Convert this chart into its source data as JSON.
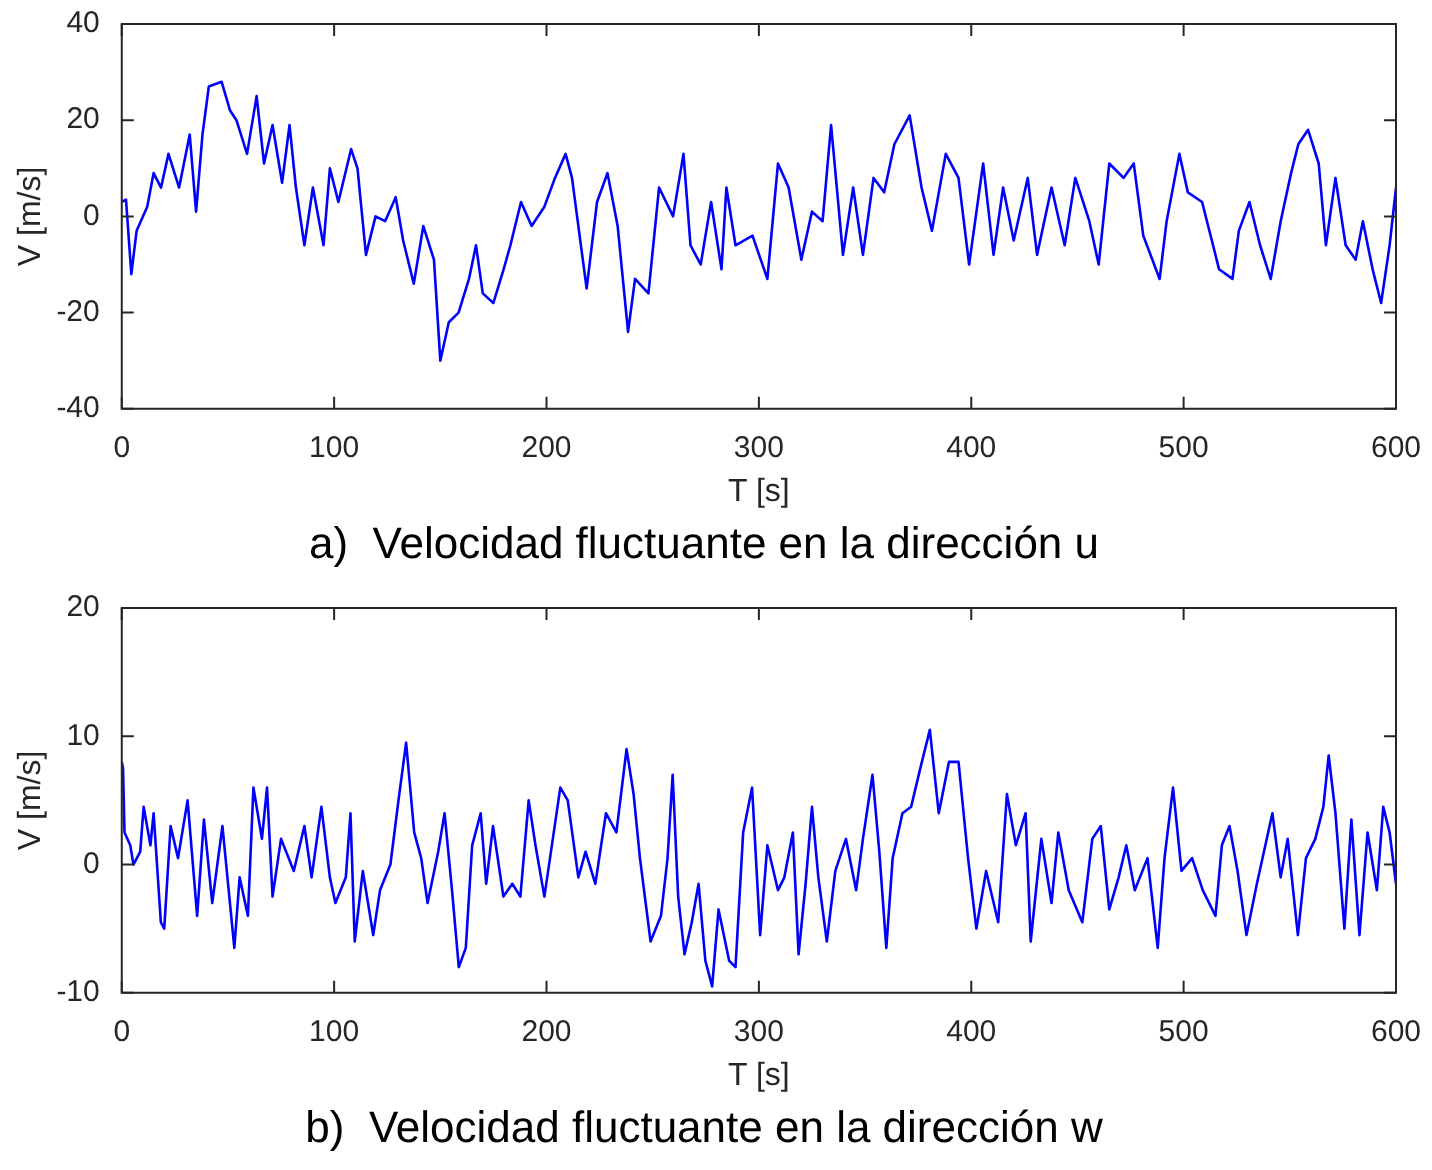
{
  "chart_data": [
    {
      "type": "line",
      "title": "a)  Velocidad fluctuante en la dirección u",
      "xlabel": "T [s]",
      "ylabel": "V [m/s]",
      "x": [
        0,
        2,
        4.5,
        7,
        12,
        15,
        18.5,
        22,
        27,
        32,
        35,
        38,
        41,
        47,
        51,
        54,
        59,
        63.5,
        67,
        71,
        75.5,
        79,
        82,
        86,
        90,
        95,
        98,
        102,
        108,
        111,
        115,
        119.5,
        124,
        129,
        132.5,
        137.5,
        142,
        147,
        150,
        154,
        158.6,
        163.5,
        166.8,
        170,
        175,
        179.8,
        183,
        188,
        193,
        199,
        204,
        209,
        212,
        218.9,
        223.8,
        228.7,
        233.5,
        238.4,
        241.7,
        248,
        253,
        259.6,
        264.5,
        267.8,
        272.6,
        277.5,
        282.4,
        284.7,
        289,
        297,
        304,
        309,
        314,
        320,
        325,
        330,
        334,
        339.6,
        344.4,
        349,
        354,
        359,
        363.8,
        371,
        376.6,
        381.5,
        388,
        394,
        399,
        405.6,
        410.5,
        415,
        420,
        426.6,
        431,
        437.8,
        444,
        449,
        455.6,
        460,
        465,
        471.7,
        476.5,
        481,
        488.7,
        492,
        498,
        502,
        508.7,
        516.7,
        523,
        526,
        531,
        536,
        541,
        545.7,
        550.6,
        554,
        558.6,
        563.6,
        567,
        571.5,
        576.3,
        581,
        584.4,
        589,
        593,
        597,
        600
      ],
      "series": [
        {
          "color": "#0000ff",
          "values": [
            3,
            3.5,
            -12,
            -3,
            2,
            9,
            6,
            13,
            6,
            17,
            1,
            17,
            27,
            28,
            22,
            20,
            13,
            25,
            11,
            19,
            7,
            19,
            6,
            -6,
            6,
            -6,
            10,
            3,
            14,
            10,
            -8,
            0,
            -1,
            4,
            -5,
            -14,
            -2,
            -9,
            -30,
            -22,
            -20,
            -13,
            -6,
            -16,
            -18,
            -11,
            -6,
            3,
            -2,
            2,
            8,
            13,
            8,
            -15,
            3,
            9,
            -2,
            -24,
            -13,
            -16,
            6,
            0,
            13,
            -6,
            -10,
            3,
            -11,
            6,
            -6,
            -4,
            -13,
            11,
            6,
            -9,
            1,
            -1,
            19,
            -8,
            6,
            -8,
            8,
            5,
            15,
            21,
            6,
            -3,
            13,
            8,
            -10,
            11,
            -8,
            6,
            -5,
            8,
            -8,
            6,
            -6,
            8,
            -1,
            -10,
            11,
            8,
            11,
            -4,
            -13,
            -1,
            13,
            5,
            3,
            -11,
            -13,
            -3,
            3,
            -6,
            -13,
            -1,
            9,
            15,
            18,
            11,
            -6,
            8,
            -6,
            -9,
            -1,
            -11,
            -18,
            -6,
            6
          ]
        }
      ],
      "xlim": [
        0,
        600
      ],
      "xticks": [
        0,
        100,
        200,
        300,
        400,
        500,
        600
      ],
      "ylim": [
        -40,
        40
      ],
      "yticks": [
        -40,
        -20,
        0,
        20,
        40
      ]
    },
    {
      "type": "line",
      "title": "b)  Velocidad fluctuante en la dirección w",
      "xlabel": "T [s]",
      "ylabel": "V [m/s]",
      "x": [
        0,
        0.6,
        1.3,
        4,
        5.5,
        8.7,
        10.3,
        13.5,
        15,
        18.4,
        20,
        23,
        26.5,
        31,
        35.5,
        38.7,
        42.6,
        47.4,
        53,
        55.5,
        59.4,
        62,
        66,
        68.4,
        71,
        75,
        81,
        86,
        89.4,
        94,
        98,
        100.6,
        105.5,
        107.7,
        109.7,
        113.5,
        118.4,
        121.6,
        126.5,
        130.3,
        133.9,
        137.7,
        141,
        144,
        149,
        152,
        155.5,
        158.7,
        162,
        165,
        169,
        171.6,
        174.8,
        179.7,
        183.9,
        187.7,
        191.6,
        194.8,
        199,
        206.5,
        210,
        215,
        218.4,
        223,
        228,
        232.9,
        237.7,
        241,
        244,
        249,
        253.9,
        257,
        259.4,
        262,
        265,
        268.4,
        271.6,
        274.8,
        278,
        281,
        286,
        289,
        292.6,
        296.8,
        300.6,
        304,
        309,
        312,
        316,
        318.7,
        322,
        325,
        328,
        332,
        336,
        341,
        345.8,
        349,
        353.5,
        356.7,
        360,
        363,
        367.6,
        371.7,
        376,
        380.5,
        384.7,
        389.5,
        394,
        398.5,
        402.4,
        407,
        412.7,
        416.8,
        421,
        425.6,
        428,
        433,
        437.8,
        441,
        445.9,
        452.3,
        457,
        461,
        465,
        469.4,
        473,
        477,
        483,
        487.8,
        491,
        495,
        499,
        504,
        509,
        515,
        518,
        521.6,
        525.4,
        529.6,
        534.5,
        541.8,
        545.7,
        549,
        553.8,
        557.6,
        562,
        565.8,
        568.3,
        571.5,
        575.7,
        579,
        582.8,
        586.6,
        591,
        594,
        597,
        600
      ],
      "series": [
        {
          "color": "#0000ff",
          "values": [
            8,
            7.5,
            2.5,
            1.5,
            0,
            1,
            4.5,
            1.5,
            4,
            -4.5,
            -5,
            3,
            0.5,
            5,
            -4,
            3.5,
            -3,
            3,
            -6.5,
            -1,
            -4,
            6,
            2,
            6,
            -2.5,
            2,
            -0.5,
            3,
            -1,
            4.5,
            -1,
            -3,
            -1,
            4,
            -6,
            -0.5,
            -5.5,
            -2,
            0,
            5,
            9.5,
            2.5,
            0.5,
            -3,
            1,
            4,
            -2,
            -8,
            -6.5,
            1.5,
            4,
            -1.5,
            3,
            -2.5,
            -1.5,
            -2.5,
            5,
            1.5,
            -2.5,
            6,
            5,
            -1,
            1,
            -1.5,
            4,
            2.5,
            9,
            5.5,
            0.5,
            -6,
            -4,
            0.5,
            7,
            -2.5,
            -7,
            -4.5,
            -1.5,
            -7.5,
            -9.5,
            -3.5,
            -7.5,
            -8,
            2.5,
            6,
            -5.5,
            1.5,
            -2,
            -1,
            2.5,
            -7,
            -1.5,
            4.5,
            -1,
            -6,
            -0.5,
            2,
            -2,
            2,
            7,
            1,
            -6.5,
            0.5,
            4,
            4.5,
            7.5,
            10.5,
            4,
            8,
            8,
            0.5,
            -5,
            -0.5,
            -4.5,
            5.5,
            1.5,
            4,
            -6,
            2,
            -3,
            2.5,
            -2,
            -4.5,
            2,
            3,
            -3.5,
            -1,
            1.5,
            -2,
            0.5,
            -6.5,
            0.5,
            6,
            -0.5,
            0.5,
            -2,
            -4,
            1.5,
            3,
            -0.5,
            -5.5,
            -1.5,
            4,
            -1,
            2,
            -5.5,
            0.5,
            2,
            4.5,
            8.5,
            4,
            -5,
            3.5,
            -5.5,
            2.5,
            -2,
            4.5,
            2.5,
            -1.5
          ]
        }
      ],
      "xlim": [
        0,
        600
      ],
      "xticks": [
        0,
        100,
        200,
        300,
        400,
        500,
        600
      ],
      "ylim": [
        -10,
        20
      ],
      "yticks": [
        -10,
        0,
        10,
        20
      ]
    }
  ]
}
